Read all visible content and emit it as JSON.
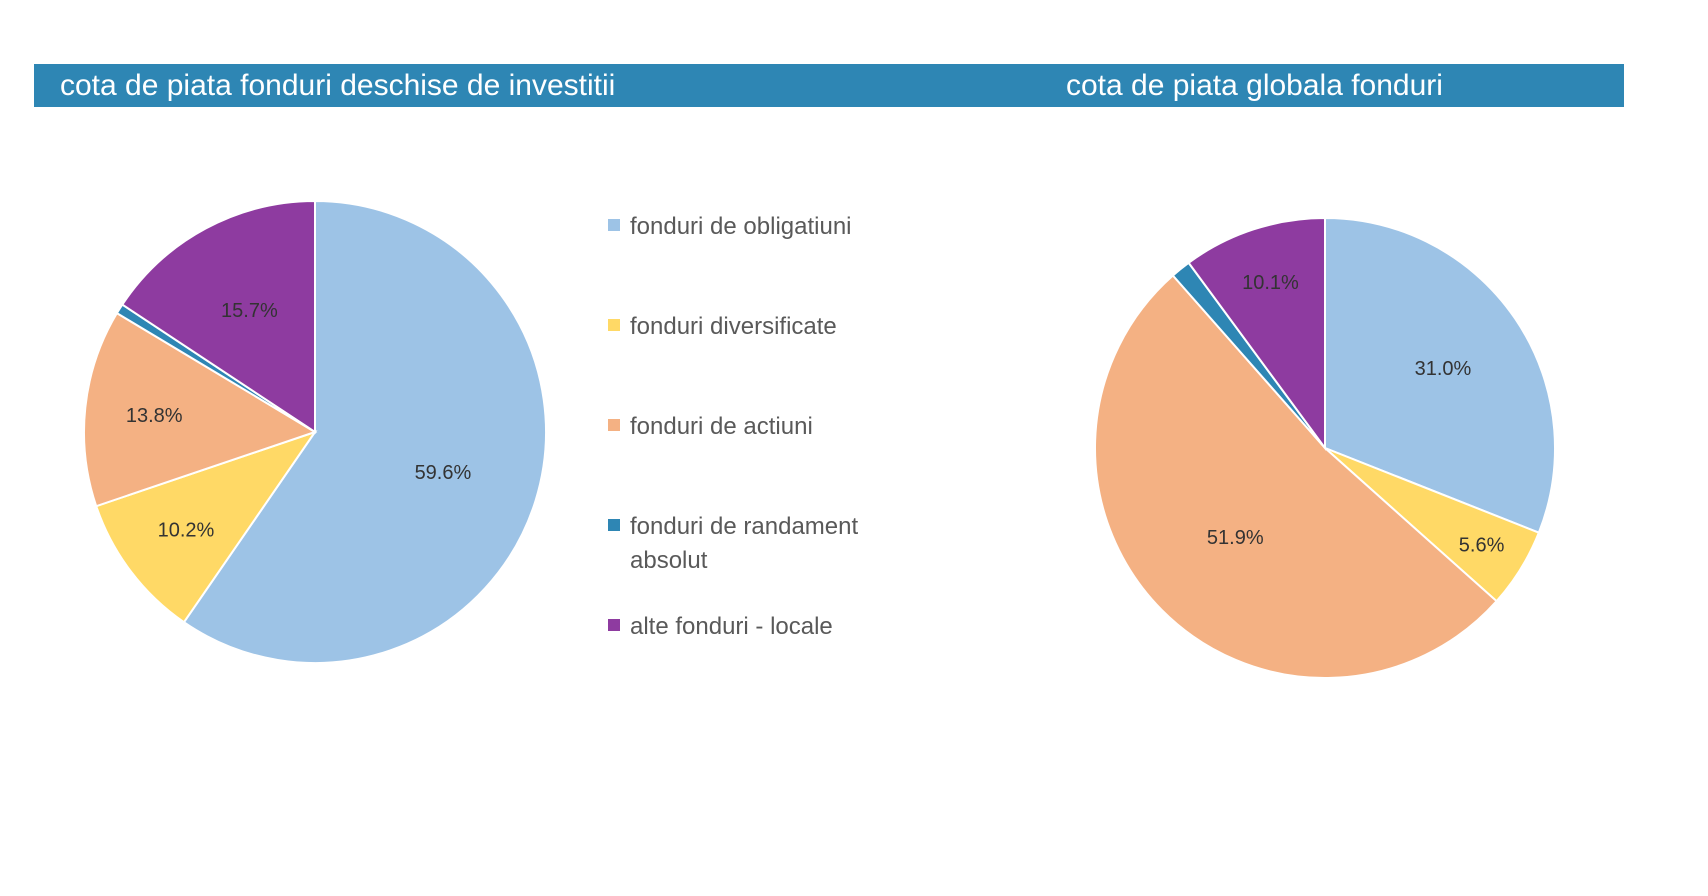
{
  "header": {
    "left_title": "cota de piata fonduri deschise de investitii",
    "right_title": "cota de piata globala fonduri",
    "bar_color": "#2e86b4"
  },
  "chart_data": [
    {
      "type": "pie",
      "title": "cota de piata fonduri deschise de investitii",
      "categories": [
        "fonduri de obligatiuni",
        "fonduri diversificate",
        "fonduri de actiuni",
        "fonduri de randament absolut",
        "alte fonduri - locale"
      ],
      "values": [
        59.6,
        10.2,
        13.8,
        0.7,
        15.7
      ],
      "labels": [
        "59.6%",
        "10.2%",
        "13.8%",
        "",
        "15.7%"
      ],
      "colors": [
        "#9dc3e6",
        "#ffd966",
        "#f4b183",
        "#2e86b4",
        "#8e3ba0"
      ],
      "legend": "right"
    },
    {
      "type": "pie",
      "title": "cota de piata globala fonduri",
      "categories": [
        "fonduri de obligatiuni",
        "fonduri diversificate",
        "fonduri de actiuni",
        "fonduri de randament absolut",
        "alte fonduri - locale"
      ],
      "values": [
        31.0,
        5.6,
        51.9,
        1.4,
        10.1
      ],
      "labels": [
        "31.0%",
        "5.6%",
        "51.9%",
        "",
        "10.1%"
      ],
      "colors": [
        "#9dc3e6",
        "#ffd966",
        "#f4b183",
        "#2e86b4",
        "#8e3ba0"
      ]
    }
  ],
  "legend": {
    "items": [
      {
        "label": "fonduri de obligatiuni",
        "color": "#9dc3e6"
      },
      {
        "label": "fonduri diversificate",
        "color": "#ffd966"
      },
      {
        "label": "fonduri de actiuni",
        "color": "#f4b183"
      },
      {
        "label": "fonduri de randament absolut",
        "color": "#2e86b4"
      },
      {
        "label": "alte fonduri - locale",
        "color": "#8e3ba0"
      }
    ]
  }
}
